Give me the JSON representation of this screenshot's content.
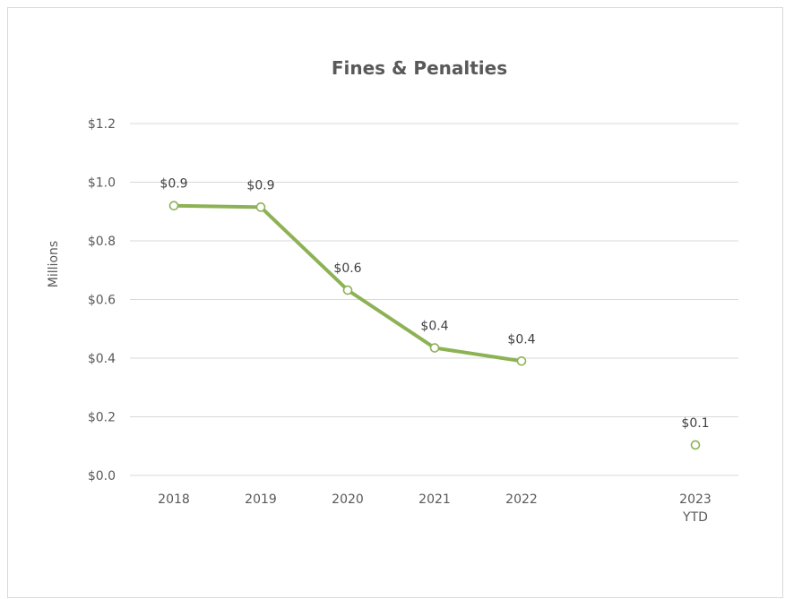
{
  "chart_data": {
    "type": "line",
    "title": "Fines & Penalties",
    "ylabel": "Millions",
    "xlabel": "",
    "ylim": [
      0,
      1.2
    ],
    "y_ticks": [
      0.0,
      0.2,
      0.4,
      0.6,
      0.8,
      1.0,
      1.2
    ],
    "y_tick_labels": [
      "$0.0",
      "$0.2",
      "$0.4",
      "$0.6",
      "$0.8",
      "$1.0",
      "$1.2"
    ],
    "grid": true,
    "legend": "none",
    "categories": [
      {
        "lines": [
          "2018"
        ]
      },
      {
        "lines": [
          "2019"
        ]
      },
      {
        "lines": [
          "2020"
        ]
      },
      {
        "lines": [
          "2021"
        ]
      },
      {
        "lines": [
          "2022"
        ]
      },
      {
        "lines": [
          "2023",
          "YTD"
        ]
      }
    ],
    "series": [
      {
        "values": [
          0.92,
          0.915,
          0.632,
          0.435,
          0.39,
          0.104
        ],
        "data_labels": [
          "$0.9",
          "$0.9",
          "$0.6",
          "$0.4",
          "$0.4",
          "$0.1"
        ],
        "connected": [
          true,
          true,
          true,
          true,
          true,
          false
        ],
        "color": "#8DB255",
        "marker": "hollow-circle"
      }
    ]
  }
}
